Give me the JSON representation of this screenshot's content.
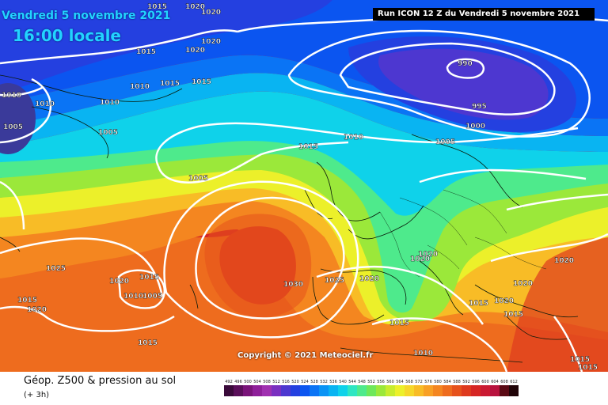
{
  "header": {
    "date": "Vendredi 5 novembre 2021",
    "time": "16:00 locale",
    "run": "Run ICON 12 Z du Vendredi 5 novembre 2021"
  },
  "map": {
    "isobar_labels": [
      "1015",
      "1020",
      "1020",
      "1020",
      "1015",
      "1020",
      "1010",
      "1015",
      "1015",
      "1010",
      "1010",
      "990",
      "995",
      "1000",
      "1005",
      "1005",
      "1015",
      "1010",
      "1005",
      "1005",
      "1025",
      "1020",
      "1015",
      "1010",
      "1005",
      "1015",
      "1020",
      "1030",
      "1025",
      "1020",
      "1020",
      "1020",
      "1015",
      "1015",
      "1015",
      "1010",
      "1020",
      "1020",
      "1020",
      "1015",
      "1015",
      "1015",
      "1010"
    ],
    "copyright": "Copyright © 2021 Meteociel.fr"
  },
  "footer": {
    "title": "Géop. Z500 & pression au sol",
    "subtitle": "(+ 3h)"
  },
  "legend": {
    "labels": [
      "492",
      "496",
      "500",
      "504",
      "508",
      "512",
      "516",
      "520",
      "524",
      "528",
      "532",
      "536",
      "540",
      "544",
      "548",
      "552",
      "556",
      "560",
      "564",
      "568",
      "572",
      "576",
      "580",
      "584",
      "588",
      "592",
      "596",
      "600",
      "604",
      "608",
      "612"
    ],
    "colors": [
      "#3a0a3a",
      "#5a0f5a",
      "#7a147a",
      "#8f1f9a",
      "#a030b0",
      "#7a2fc0",
      "#4d37d0",
      "#2440e0",
      "#0b55f0",
      "#0a74f5",
      "#0a94f5",
      "#09b4f2",
      "#0fd2ea",
      "#2ee6c2",
      "#4eea8c",
      "#6ee85a",
      "#9be83a",
      "#c8ec2e",
      "#ecf02a",
      "#f6d72a",
      "#f8bc26",
      "#f8a024",
      "#f48620",
      "#ee6c1e",
      "#e6521c",
      "#de3a1e",
      "#d62624",
      "#ca1a32",
      "#b8123e",
      "#5a0a14",
      "#200408"
    ]
  }
}
